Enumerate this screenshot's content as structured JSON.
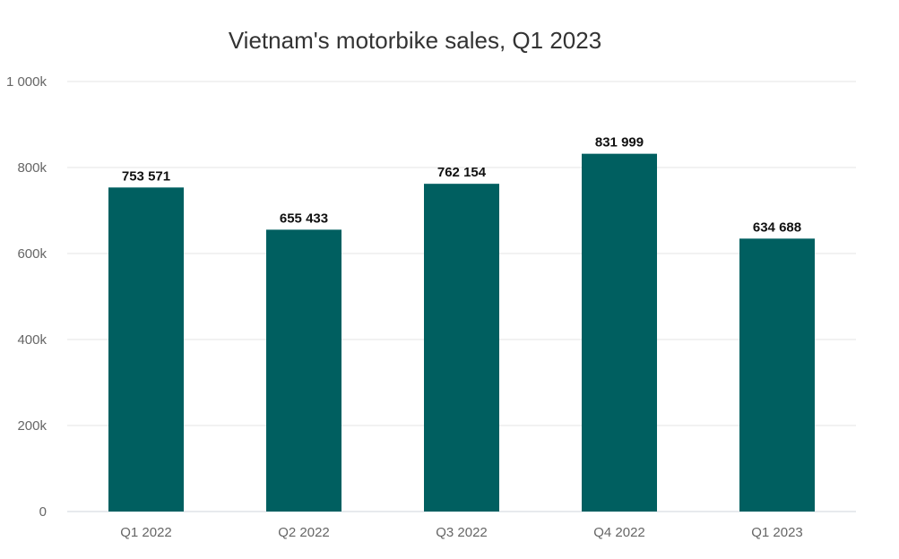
{
  "chart_data": {
    "type": "bar",
    "title": "Vietnam's motorbike sales, Q1 2023",
    "xlabel": "",
    "ylabel": "",
    "categories": [
      "Q1 2022",
      "Q2 2022",
      "Q3 2022",
      "Q4 2022",
      "Q1 2023"
    ],
    "values": [
      753571,
      655433,
      762154,
      831999,
      634688
    ],
    "data_labels": [
      "753 571",
      "655 433",
      "762 154",
      "831 999",
      "634 688"
    ],
    "ylim": [
      0,
      1000000
    ],
    "y_ticks": [
      0,
      200000,
      400000,
      600000,
      800000,
      1000000
    ],
    "y_tick_labels": [
      "0",
      "200k",
      "400k",
      "600k",
      "800k",
      "1 000k"
    ],
    "grid": true,
    "legend": "none",
    "bar_color": "#005f60"
  }
}
